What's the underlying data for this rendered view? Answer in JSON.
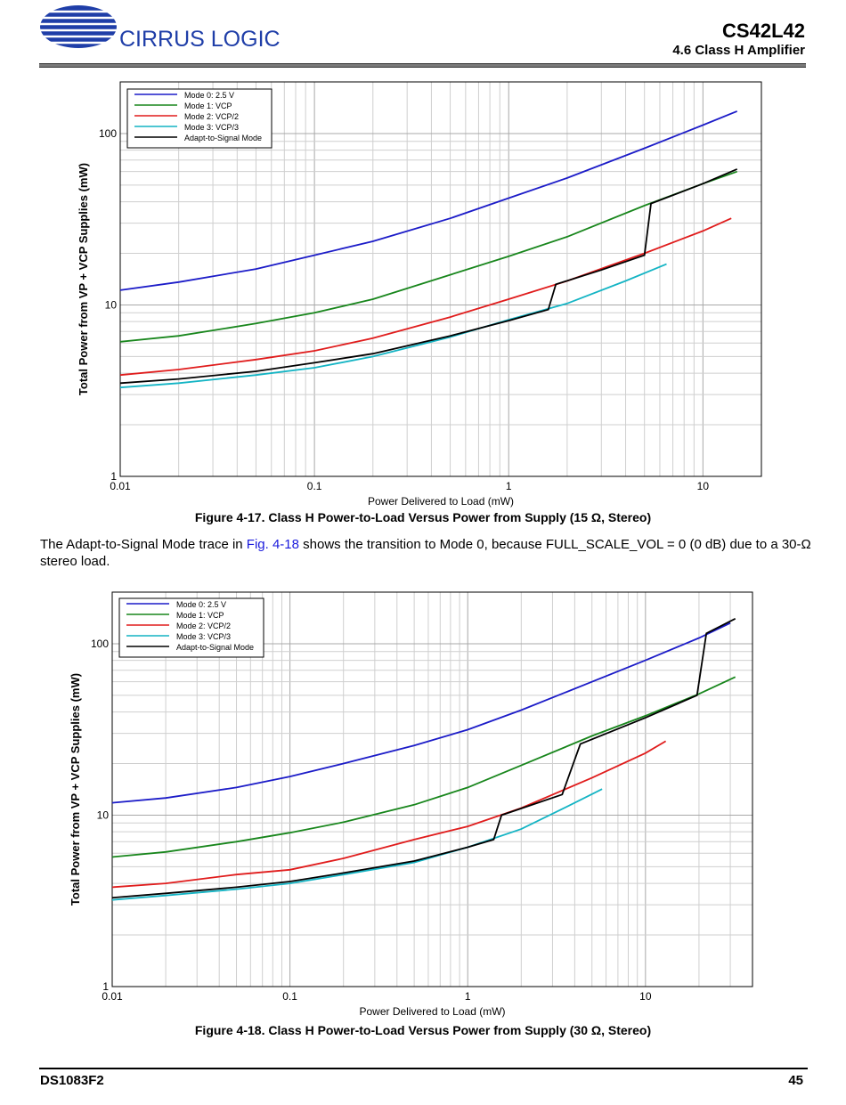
{
  "header": {
    "logo_text": "CIRRUS LOGIC",
    "doc_title": "CS42L42",
    "section": "4.6 Class H Amplifier"
  },
  "figures": [
    {
      "caption": "Figure 4-17. Class H Power-to-Load Versus Power from Supply (15 Ω, Stereo)"
    },
    {
      "caption": "Figure 4-18. Class H Power-to-Load Versus Power from Supply (30 Ω, Stereo)"
    }
  ],
  "body_text": {
    "before": "The Adapt-to-Signal Mode trace in ",
    "link": "Fig. 4-18",
    "after": " shows the transition to Mode 0, because FULL_SCALE_VOL = 0 (0 dB) due to a 30-Ω stereo load."
  },
  "footer": {
    "doc_id": "DS1083F2",
    "page": "45"
  },
  "colors": {
    "mode0": "#1c1cc8",
    "mode1": "#18861c",
    "mode2": "#e01c1c",
    "mode3": "#14b4c4",
    "ats": "#000000",
    "link": "#1a1adc",
    "rule": "#7a7a7a"
  },
  "chart_data": [
    {
      "type": "line",
      "xscale": "log",
      "yscale": "log",
      "xlabel": "Power Delivered to Load (mW)",
      "ylabel": "Total Power from VP + VCP Supplies (mW)",
      "xlim": [
        0.01,
        20
      ],
      "ylim": [
        1,
        200
      ],
      "x_ticks": [
        "0.01",
        "0.1",
        "1",
        "10"
      ],
      "y_ticks": [
        "1",
        "10",
        "100"
      ],
      "grid": true,
      "legend_position": "top-left",
      "series": [
        {
          "name": "Mode 0: 2.5 V",
          "color": "#1c1cc8",
          "points": [
            [
              0.01,
              12.2
            ],
            [
              0.02,
              13.6
            ],
            [
              0.05,
              16.2
            ],
            [
              0.1,
              19.5
            ],
            [
              0.2,
              23.5
            ],
            [
              0.5,
              32
            ],
            [
              1,
              42
            ],
            [
              2,
              55
            ],
            [
              5,
              82
            ],
            [
              10,
              112
            ],
            [
              15,
              135
            ]
          ]
        },
        {
          "name": "Mode 1: VCP",
          "color": "#18861c",
          "points": [
            [
              0.01,
              6.1
            ],
            [
              0.02,
              6.6
            ],
            [
              0.05,
              7.8
            ],
            [
              0.1,
              9.0
            ],
            [
              0.2,
              10.8
            ],
            [
              0.5,
              15
            ],
            [
              1,
              19.2
            ],
            [
              2,
              25
            ],
            [
              5,
              38
            ],
            [
              10,
              51
            ],
            [
              15,
              60
            ]
          ]
        },
        {
          "name": "Mode 2: VCP/2",
          "color": "#e01c1c",
          "points": [
            [
              0.01,
              3.9
            ],
            [
              0.02,
              4.2
            ],
            [
              0.05,
              4.8
            ],
            [
              0.1,
              5.4
            ],
            [
              0.2,
              6.4
            ],
            [
              0.5,
              8.5
            ],
            [
              1,
              10.8
            ],
            [
              2,
              13.8
            ],
            [
              5,
              20
            ],
            [
              10,
              27
            ],
            [
              14,
              32
            ]
          ]
        },
        {
          "name": "Mode 3: VCP/3",
          "color": "#14b4c4",
          "points": [
            [
              0.01,
              3.3
            ],
            [
              0.02,
              3.5
            ],
            [
              0.05,
              3.9
            ],
            [
              0.1,
              4.3
            ],
            [
              0.2,
              5.0
            ],
            [
              0.5,
              6.5
            ],
            [
              1,
              8.2
            ],
            [
              2,
              10.2
            ],
            [
              4,
              13.8
            ],
            [
              6.5,
              17.3
            ]
          ]
        },
        {
          "name": "Adapt-to-Signal Mode",
          "color": "#000000",
          "points": [
            [
              0.01,
              3.5
            ],
            [
              0.02,
              3.7
            ],
            [
              0.05,
              4.1
            ],
            [
              0.1,
              4.6
            ],
            [
              0.2,
              5.2
            ],
            [
              0.5,
              6.6
            ],
            [
              1,
              8.1
            ],
            [
              1.6,
              9.4
            ],
            [
              1.75,
              13.2
            ],
            [
              3,
              16
            ],
            [
              5,
              19.5
            ],
            [
              5.4,
              39
            ],
            [
              10,
              51
            ],
            [
              15,
              62
            ]
          ]
        }
      ]
    },
    {
      "type": "line",
      "xscale": "log",
      "yscale": "log",
      "xlabel": "Power Delivered to Load (mW)",
      "ylabel": "Total Power from VP + VCP Supplies (mW)",
      "xlim": [
        0.01,
        40
      ],
      "ylim": [
        1,
        200
      ],
      "x_ticks": [
        "0.01",
        "0.1",
        "1",
        "10"
      ],
      "y_ticks": [
        "1",
        "10",
        "100"
      ],
      "grid": true,
      "legend_position": "top-left",
      "series": [
        {
          "name": "Mode 0: 2.5 V",
          "color": "#1c1cc8",
          "points": [
            [
              0.01,
              11.8
            ],
            [
              0.02,
              12.6
            ],
            [
              0.05,
              14.5
            ],
            [
              0.1,
              16.8
            ],
            [
              0.2,
              20
            ],
            [
              0.5,
              25.5
            ],
            [
              1,
              31.5
            ],
            [
              2,
              41
            ],
            [
              5,
              60
            ],
            [
              10,
              80
            ],
            [
              20,
              108
            ],
            [
              30,
              132
            ]
          ]
        },
        {
          "name": "Mode 1: VCP",
          "color": "#18861c",
          "points": [
            [
              0.01,
              5.7
            ],
            [
              0.02,
              6.1
            ],
            [
              0.05,
              7.0
            ],
            [
              0.1,
              7.9
            ],
            [
              0.2,
              9.1
            ],
            [
              0.5,
              11.5
            ],
            [
              1,
              14.5
            ],
            [
              2,
              19.5
            ],
            [
              5,
              29
            ],
            [
              10,
              38
            ],
            [
              20,
              51
            ],
            [
              32,
              64
            ]
          ]
        },
        {
          "name": "Mode 2: VCP/2",
          "color": "#e01c1c",
          "points": [
            [
              0.01,
              3.8
            ],
            [
              0.02,
              4.0
            ],
            [
              0.05,
              4.5
            ],
            [
              0.1,
              4.8
            ],
            [
              0.2,
              5.6
            ],
            [
              0.5,
              7.2
            ],
            [
              1,
              8.6
            ],
            [
              2,
              11
            ],
            [
              5,
              16.5
            ],
            [
              10,
              23
            ],
            [
              13,
              27
            ]
          ]
        },
        {
          "name": "Mode 3: VCP/3",
          "color": "#14b4c4",
          "points": [
            [
              0.01,
              3.2
            ],
            [
              0.02,
              3.4
            ],
            [
              0.05,
              3.7
            ],
            [
              0.1,
              4.0
            ],
            [
              0.2,
              4.5
            ],
            [
              0.5,
              5.3
            ],
            [
              1,
              6.5
            ],
            [
              2,
              8.3
            ],
            [
              4,
              11.8
            ],
            [
              5.7,
              14.2
            ]
          ]
        },
        {
          "name": "Adapt-to-Signal Mode",
          "color": "#000000",
          "points": [
            [
              0.01,
              3.3
            ],
            [
              0.02,
              3.5
            ],
            [
              0.05,
              3.8
            ],
            [
              0.1,
              4.1
            ],
            [
              0.2,
              4.6
            ],
            [
              0.5,
              5.4
            ],
            [
              1,
              6.5
            ],
            [
              1.4,
              7.2
            ],
            [
              1.55,
              10
            ],
            [
              3.4,
              13.2
            ],
            [
              4.3,
              26
            ],
            [
              10,
              37
            ],
            [
              19.5,
              50
            ],
            [
              22,
              115
            ],
            [
              32,
              140
            ]
          ]
        }
      ]
    }
  ]
}
